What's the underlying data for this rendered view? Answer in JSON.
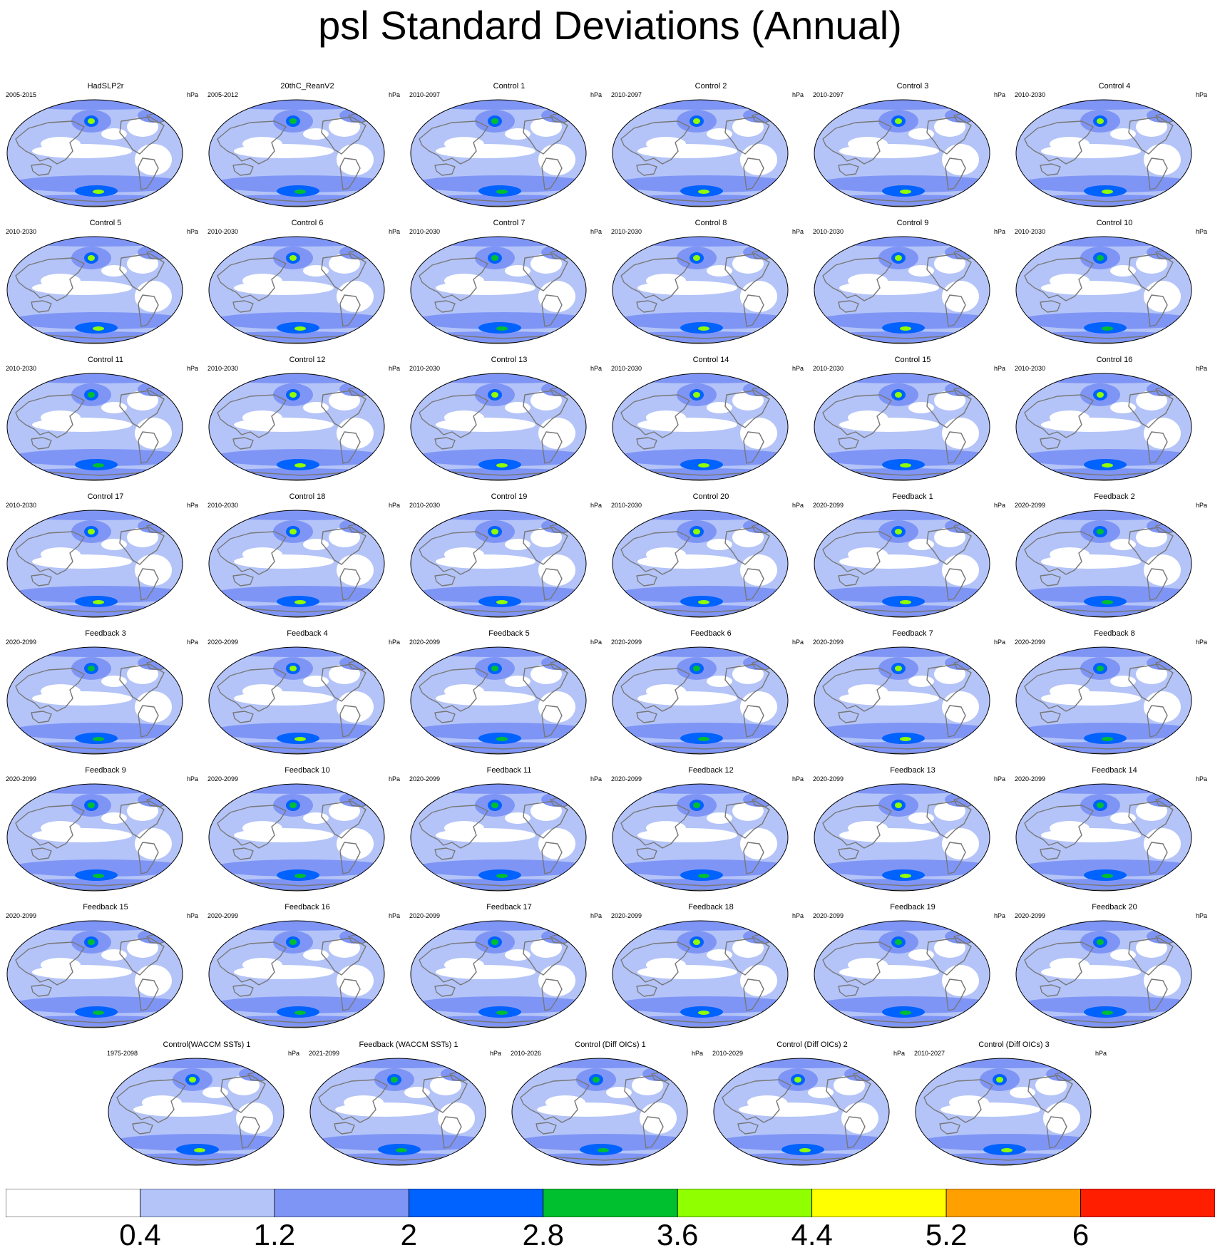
{
  "title": "psl Standard Deviations (Annual)",
  "units": "hPa",
  "chart_data": {
    "type": "heatmap",
    "projection": "robinson",
    "variable": "psl",
    "units": "hPa",
    "contour_levels": [
      0.4,
      1.2,
      2,
      2.8,
      3.6,
      4.4,
      5.2,
      6
    ],
    "colors": [
      "#ffffff",
      "#b4c4f8",
      "#7f95f5",
      "#0062ff",
      "#00c030",
      "#90ff00",
      "#ffff00",
      "#ffa000",
      "#ff1e00"
    ],
    "tick_labels": [
      "0.4",
      "1.2",
      "2",
      "2.8",
      "3.6",
      "4.4",
      "5.2",
      "6"
    ],
    "panels": [
      {
        "title": "HadSLP2r",
        "years": "2005-2015",
        "max": 3.6
      },
      {
        "title": "20thC_ReanV2",
        "years": "2005-2012",
        "max": 2.8
      },
      {
        "title": "Control 1",
        "years": "2010-2097",
        "max": 2.8
      },
      {
        "title": "Control 2",
        "years": "2010-2097",
        "max": 3.6
      },
      {
        "title": "Control 3",
        "years": "2010-2097",
        "max": 3.6
      },
      {
        "title": "Control 4",
        "years": "2010-2030",
        "max": 3.6
      },
      {
        "title": "Control 5",
        "years": "2010-2030",
        "max": 3.6
      },
      {
        "title": "Control 6",
        "years": "2010-2030",
        "max": 3.6
      },
      {
        "title": "Control 7",
        "years": "2010-2030",
        "max": 2.8
      },
      {
        "title": "Control 8",
        "years": "2010-2030",
        "max": 3.6
      },
      {
        "title": "Control 9",
        "years": "2010-2030",
        "max": 3.6
      },
      {
        "title": "Control 10",
        "years": "2010-2030",
        "max": 2.8
      },
      {
        "title": "Control 11",
        "years": "2010-2030",
        "max": 2.8
      },
      {
        "title": "Control 12",
        "years": "2010-2030",
        "max": 3.6
      },
      {
        "title": "Control 13",
        "years": "2010-2030",
        "max": 3.6
      },
      {
        "title": "Control 14",
        "years": "2010-2030",
        "max": 3.6
      },
      {
        "title": "Control 15",
        "years": "2010-2030",
        "max": 3.6
      },
      {
        "title": "Control 16",
        "years": "2010-2030",
        "max": 3.6
      },
      {
        "title": "Control 17",
        "years": "2010-2030",
        "max": 3.6
      },
      {
        "title": "Control 18",
        "years": "2010-2030",
        "max": 3.6
      },
      {
        "title": "Control 19",
        "years": "2010-2030",
        "max": 3.6
      },
      {
        "title": "Control 20",
        "years": "2010-2030",
        "max": 3.6
      },
      {
        "title": "Feedback 1",
        "years": "2020-2099",
        "max": 3.6
      },
      {
        "title": "Feedback 2",
        "years": "2020-2099",
        "max": 2.8
      },
      {
        "title": "Feedback 3",
        "years": "2020-2099",
        "max": 2.8
      },
      {
        "title": "Feedback 4",
        "years": "2020-2099",
        "max": 3.6
      },
      {
        "title": "Feedback 5",
        "years": "2020-2099",
        "max": 2.8
      },
      {
        "title": "Feedback 6",
        "years": "2020-2099",
        "max": 2.8
      },
      {
        "title": "Feedback 7",
        "years": "2020-2099",
        "max": 3.6
      },
      {
        "title": "Feedback 8",
        "years": "2020-2099",
        "max": 2.8
      },
      {
        "title": "Feedback 9",
        "years": "2020-2099",
        "max": 2.8
      },
      {
        "title": "Feedback 10",
        "years": "2020-2099",
        "max": 2.8
      },
      {
        "title": "Feedback 11",
        "years": "2020-2099",
        "max": 2.8
      },
      {
        "title": "Feedback 12",
        "years": "2020-2099",
        "max": 2.8
      },
      {
        "title": "Feedback 13",
        "years": "2020-2099",
        "max": 3.6
      },
      {
        "title": "Feedback 14",
        "years": "2020-2099",
        "max": 2.8
      },
      {
        "title": "Feedback 15",
        "years": "2020-2099",
        "max": 2.8
      },
      {
        "title": "Feedback 16",
        "years": "2020-2099",
        "max": 2.8
      },
      {
        "title": "Feedback 17",
        "years": "2020-2099",
        "max": 2.8
      },
      {
        "title": "Feedback 18",
        "years": "2020-2099",
        "max": 3.6
      },
      {
        "title": "Feedback 19",
        "years": "2020-2099",
        "max": 2.8
      },
      {
        "title": "Feedback 20",
        "years": "2020-2099",
        "max": 2.8
      },
      {
        "title": "Control(WACCM SSTs) 1",
        "years": "1975-2098",
        "max": 3.6
      },
      {
        "title": "Feedback (WACCM SSTs) 1",
        "years": "2021-2099",
        "max": 2.8
      },
      {
        "title": "Control (Diff OICs) 1",
        "years": "2010-2026",
        "max": 2.8
      },
      {
        "title": "Control (Diff OICs) 2",
        "years": "2010-2029",
        "max": 3.6
      },
      {
        "title": "Control (Diff OICs) 3",
        "years": "2010-2027",
        "max": 3.6
      }
    ]
  }
}
